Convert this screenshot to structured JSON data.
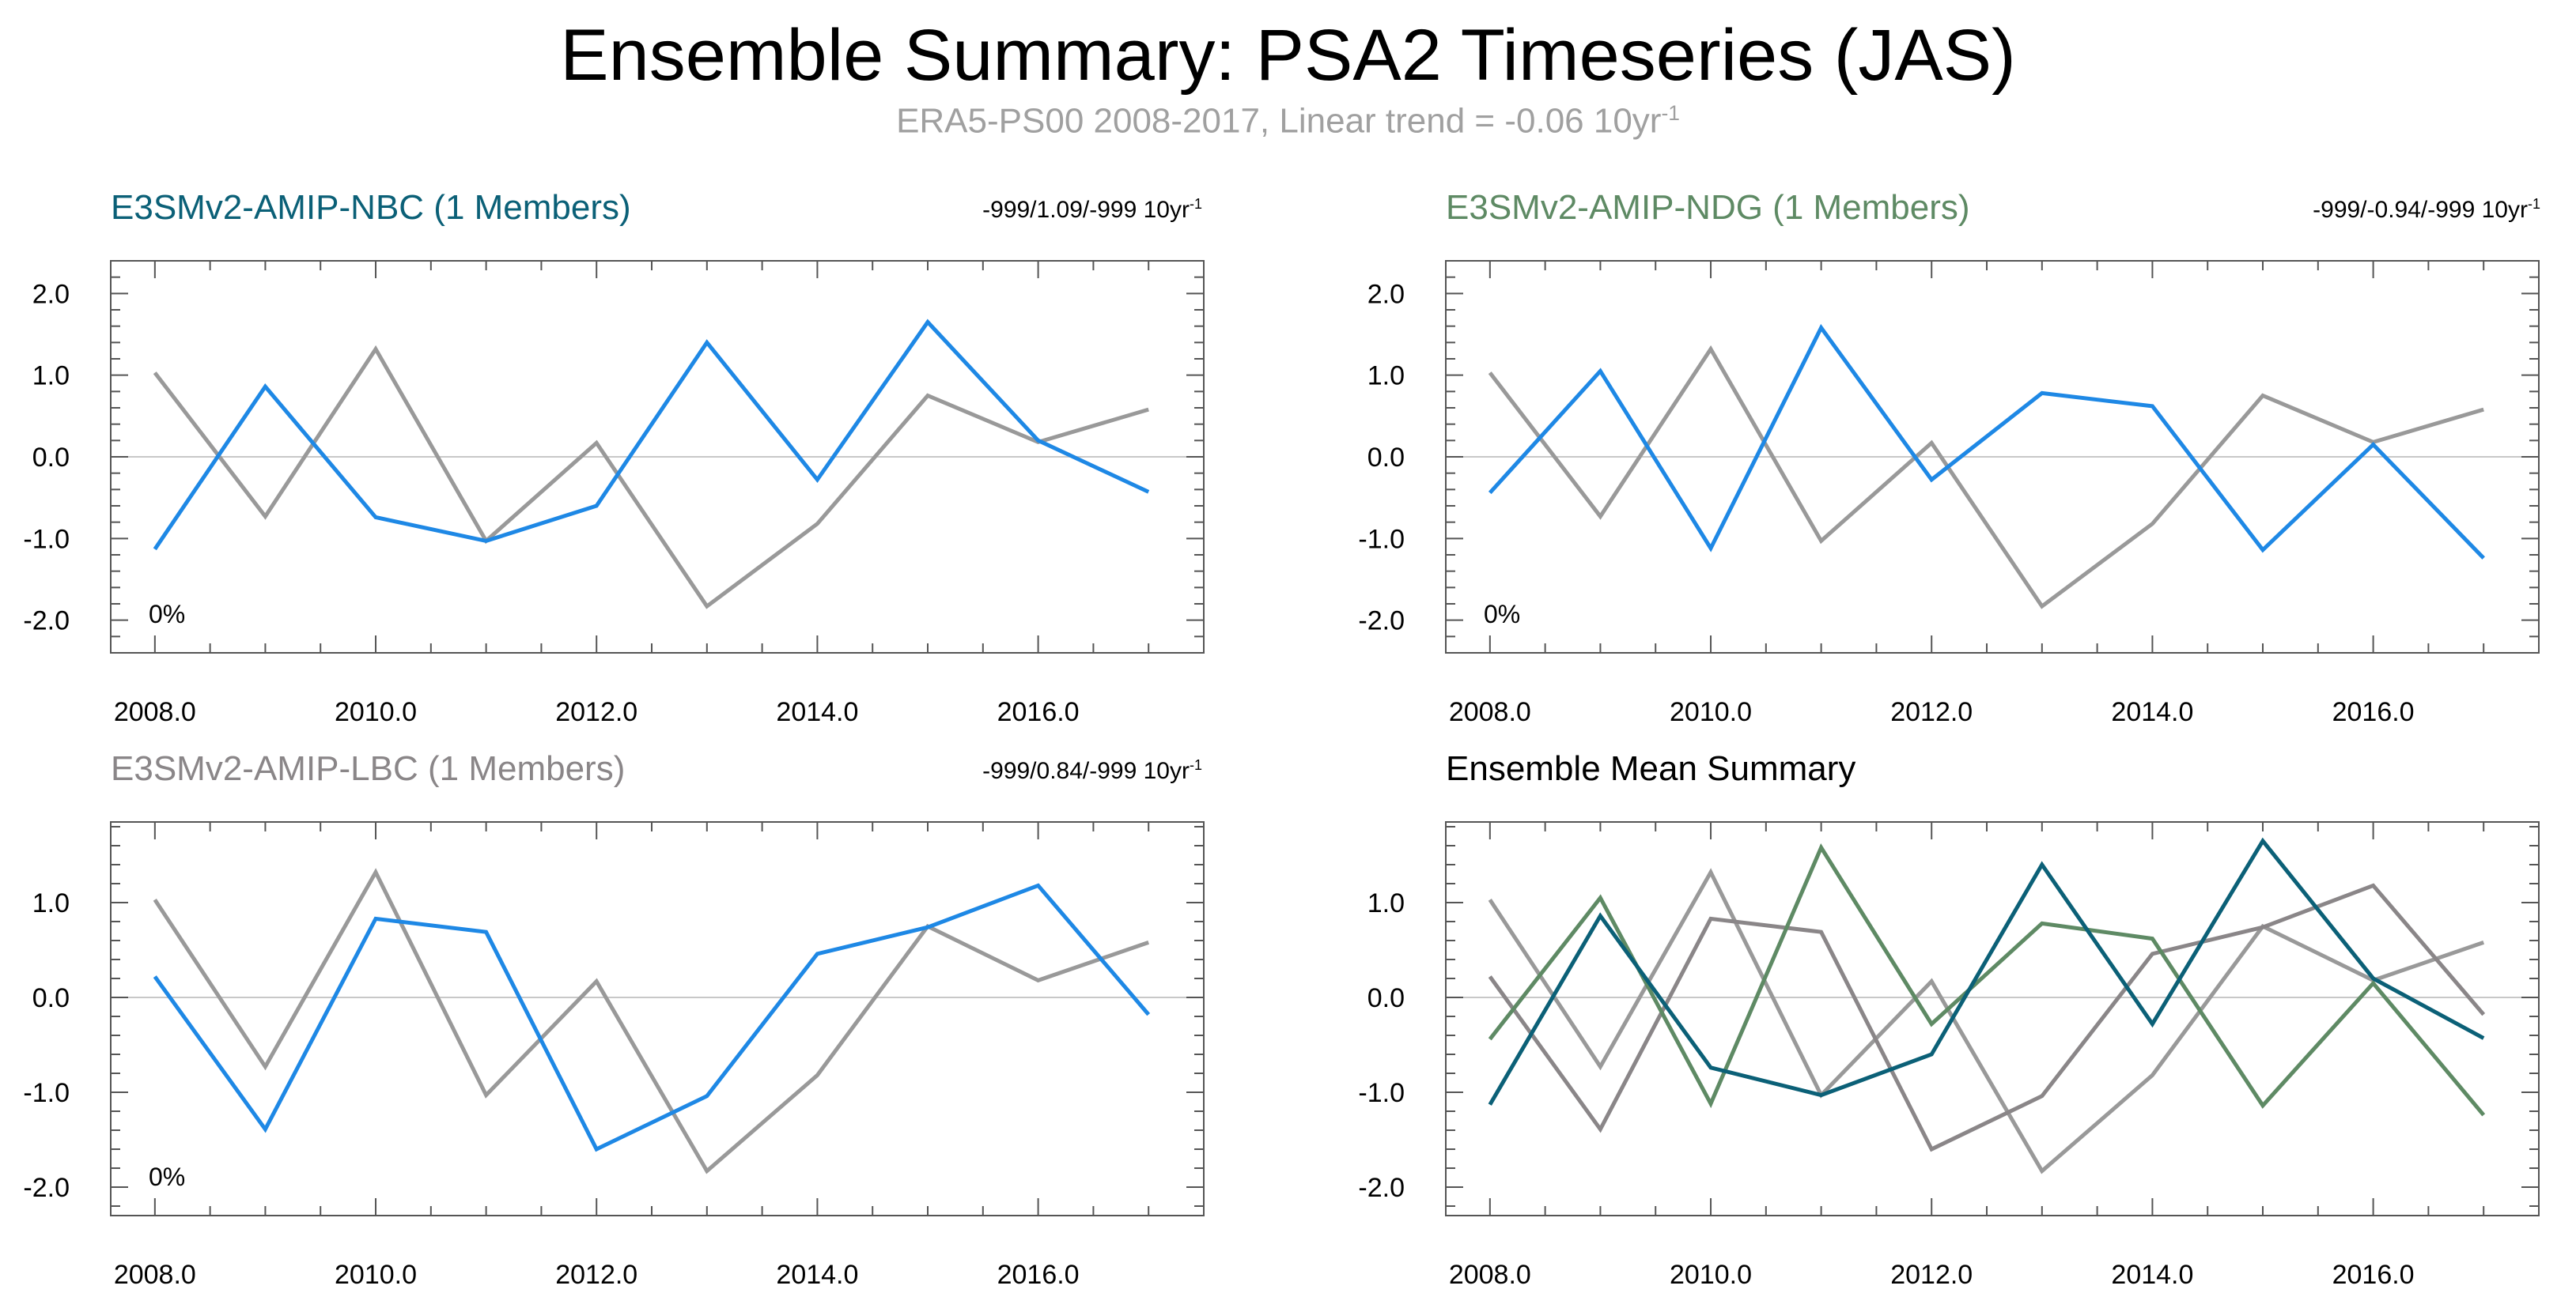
{
  "title": "Ensemble Summary: PSA2 Timeseries (JAS)",
  "subtitle": {
    "text": "ERA5-PS00 2008-2017, Linear trend = -0.06 10yr",
    "sup": "-1"
  },
  "colors": {
    "obs": "#999999",
    "model": "#1e88e5",
    "nbc": "#0b6077",
    "ndg": "#5e8a64",
    "lbc": "#8a8688",
    "zero_line": "#c8c8c8",
    "axis": "#555555"
  },
  "panels": [
    {
      "id": "nbc",
      "title": "E3SMv2-AMIP-NBC (1 Members)",
      "title_color": "#0b6077",
      "trend_text": "-999/1.09/-999 10yr",
      "trend_sup": "-1",
      "percent_label": "0%"
    },
    {
      "id": "ndg",
      "title": "E3SMv2-AMIP-NDG (1 Members)",
      "title_color": "#5e8a64",
      "trend_text": "-999/-0.94/-999 10yr",
      "trend_sup": "-1",
      "percent_label": "0%"
    },
    {
      "id": "lbc",
      "title": "E3SMv2-AMIP-LBC (1 Members)",
      "title_color": "#8a8688",
      "trend_text": "-999/0.84/-999 10yr",
      "trend_sup": "-1",
      "percent_label": "0%"
    },
    {
      "id": "mean",
      "title": "Ensemble Mean Summary",
      "title_color": "#000000"
    }
  ],
  "chart_data": [
    {
      "type": "line",
      "title": "E3SMv2-AMIP-NBC (1 Members)",
      "x": [
        2008,
        2009,
        2010,
        2011,
        2012,
        2013,
        2014,
        2015,
        2016,
        2017
      ],
      "xlim": [
        2007.6,
        2017.5
      ],
      "ylim": [
        -2.4,
        2.4
      ],
      "xticks": [
        "2008.0",
        "2010.0",
        "2012.0",
        "2014.0",
        "2016.0"
      ],
      "yticks": [
        "-2.0",
        "-1.0",
        "0.0",
        "1.0",
        "2.0"
      ],
      "series": [
        {
          "name": "ERA5-PS00",
          "color": "#999999",
          "values": [
            1.03,
            -0.73,
            1.32,
            -1.03,
            0.17,
            -1.83,
            -0.82,
            0.75,
            0.18,
            0.58
          ]
        },
        {
          "name": "E3SMv2-AMIP-NBC",
          "color": "#1e88e5",
          "values": [
            -1.13,
            0.86,
            -0.74,
            -1.03,
            -0.6,
            1.4,
            -0.28,
            1.65,
            0.2,
            -0.43
          ]
        }
      ]
    },
    {
      "type": "line",
      "title": "E3SMv2-AMIP-NDG (1 Members)",
      "x": [
        2008,
        2009,
        2010,
        2011,
        2012,
        2013,
        2014,
        2015,
        2016,
        2017
      ],
      "xlim": [
        2007.6,
        2017.5
      ],
      "ylim": [
        -2.4,
        2.4
      ],
      "xticks": [
        "2008.0",
        "2010.0",
        "2012.0",
        "2014.0",
        "2016.0"
      ],
      "yticks": [
        "-2.0",
        "-1.0",
        "0.0",
        "1.0",
        "2.0"
      ],
      "series": [
        {
          "name": "ERA5-PS00",
          "color": "#999999",
          "values": [
            1.03,
            -0.73,
            1.32,
            -1.03,
            0.17,
            -1.83,
            -0.82,
            0.75,
            0.18,
            0.58
          ]
        },
        {
          "name": "E3SMv2-AMIP-NDG",
          "color": "#1e88e5",
          "values": [
            -0.44,
            1.05,
            -1.12,
            1.58,
            -0.28,
            0.78,
            0.62,
            -1.14,
            0.15,
            -1.24
          ]
        }
      ]
    },
    {
      "type": "line",
      "title": "E3SMv2-AMIP-LBC (1 Members)",
      "x": [
        2008,
        2009,
        2010,
        2011,
        2012,
        2013,
        2014,
        2015,
        2016,
        2017
      ],
      "xlim": [
        2007.6,
        2017.5
      ],
      "ylim": [
        -2.3,
        1.85
      ],
      "xticks": [
        "2008.0",
        "2010.0",
        "2012.0",
        "2014.0",
        "2016.0"
      ],
      "yticks": [
        "-2.0",
        "-1.0",
        "0.0",
        "1.0"
      ],
      "series": [
        {
          "name": "ERA5-PS00",
          "color": "#999999",
          "values": [
            1.03,
            -0.73,
            1.32,
            -1.03,
            0.17,
            -1.83,
            -0.82,
            0.75,
            0.18,
            0.58
          ]
        },
        {
          "name": "E3SMv2-AMIP-LBC",
          "color": "#1e88e5",
          "values": [
            0.22,
            -1.39,
            0.83,
            0.69,
            -1.6,
            -1.04,
            0.46,
            0.74,
            1.18,
            -0.18
          ]
        }
      ]
    },
    {
      "type": "line",
      "title": "Ensemble Mean Summary",
      "x": [
        2008,
        2009,
        2010,
        2011,
        2012,
        2013,
        2014,
        2015,
        2016,
        2017
      ],
      "xlim": [
        2007.6,
        2017.5
      ],
      "ylim": [
        -2.3,
        1.85
      ],
      "xticks": [
        "2008.0",
        "2010.0",
        "2012.0",
        "2014.0",
        "2016.0"
      ],
      "yticks": [
        "-2.0",
        "-1.0",
        "0.0",
        "1.0"
      ],
      "series": [
        {
          "name": "ERA5-PS00",
          "color": "#999999",
          "values": [
            1.03,
            -0.73,
            1.32,
            -1.03,
            0.17,
            -1.83,
            -0.82,
            0.75,
            0.18,
            0.58
          ]
        },
        {
          "name": "E3SMv2-AMIP-LBC",
          "color": "#8a8688",
          "values": [
            0.22,
            -1.39,
            0.83,
            0.69,
            -1.6,
            -1.04,
            0.46,
            0.74,
            1.18,
            -0.18
          ]
        },
        {
          "name": "E3SMv2-AMIP-NDG",
          "color": "#5e8a64",
          "values": [
            -0.44,
            1.05,
            -1.12,
            1.58,
            -0.28,
            0.78,
            0.62,
            -1.14,
            0.15,
            -1.24
          ]
        },
        {
          "name": "E3SMv2-AMIP-NBC",
          "color": "#0b6077",
          "values": [
            -1.13,
            0.86,
            -0.74,
            -1.03,
            -0.6,
            1.4,
            -0.28,
            1.65,
            0.2,
            -0.43
          ]
        }
      ]
    }
  ]
}
